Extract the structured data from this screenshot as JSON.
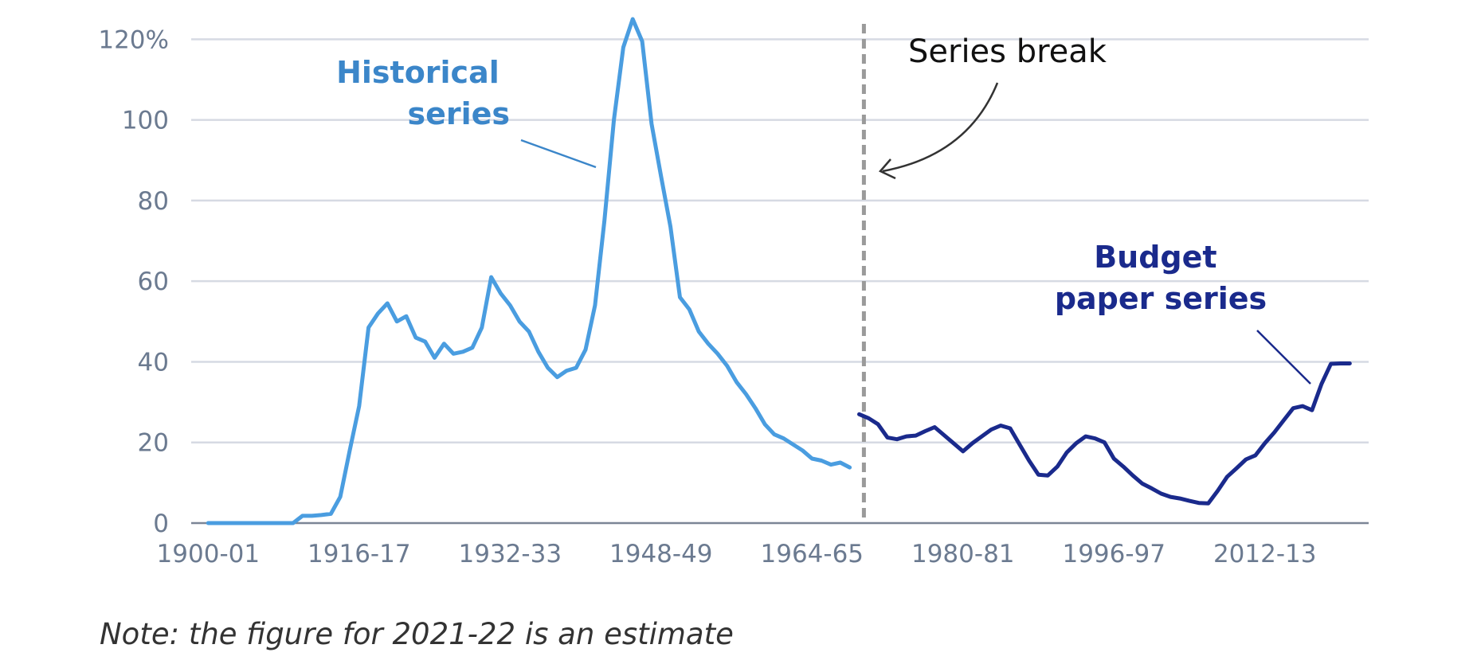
{
  "chart_data": {
    "type": "line",
    "ylim": [
      0,
      125
    ],
    "y_ticks": [
      0,
      20,
      40,
      60,
      80,
      100,
      120
    ],
    "y_tick_labels": [
      "0",
      "20",
      "40",
      "60",
      "80",
      "100",
      "120%"
    ],
    "x_tick_labels": [
      "1900-01",
      "1916-17",
      "1932-33",
      "1948-49",
      "1964-65",
      "1980-81",
      "1996-97",
      "2012-13"
    ],
    "x_tick_years": [
      1900,
      1916,
      1932,
      1948,
      1964,
      1980,
      1996,
      2012
    ],
    "x_range": [
      1898.2,
      2023.0
    ],
    "series_break_year": 1969.5,
    "grid": true,
    "series": [
      {
        "name": "Historical series",
        "color": "#4a9de0",
        "x": [
          1900,
          1901,
          1902,
          1903,
          1904,
          1905,
          1906,
          1907,
          1908,
          1909,
          1910,
          1911,
          1912,
          1913,
          1914,
          1915,
          1916,
          1917,
          1918,
          1919,
          1920,
          1921,
          1922,
          1923,
          1924,
          1925,
          1926,
          1927,
          1928,
          1929,
          1930,
          1931,
          1932,
          1933,
          1934,
          1935,
          1936,
          1937,
          1938,
          1939,
          1940,
          1941,
          1942,
          1943,
          1944,
          1945,
          1946,
          1947,
          1948,
          1949,
          1950,
          1951,
          1952,
          1953,
          1954,
          1955,
          1956,
          1957,
          1958,
          1959,
          1960,
          1961,
          1962,
          1963,
          1964,
          1965,
          1966,
          1967,
          1968
        ],
        "values": [
          0,
          0,
          0,
          0,
          0,
          0,
          0,
          0,
          0,
          0,
          1.8,
          1.8,
          2,
          2.3,
          6.5,
          18,
          29,
          48.5,
          52,
          54.5,
          50,
          51.3,
          46,
          45,
          41,
          44.5,
          42,
          42.5,
          43.5,
          48.5,
          61,
          57,
          54,
          50,
          47.5,
          42.5,
          38.5,
          36.2,
          37.8,
          38.5,
          43,
          54,
          75,
          100,
          118,
          125,
          119.5,
          99,
          86,
          73.5,
          56,
          53,
          47.5,
          44.5,
          42,
          39,
          35,
          32,
          28.5,
          24.5,
          22,
          21,
          19.5,
          18,
          16,
          15.5,
          14.5,
          15,
          13.8
        ]
      },
      {
        "name": "Budget paper series",
        "color": "#1a2a8c",
        "x": [
          1969,
          1970,
          1971,
          1972,
          1973,
          1974,
          1975,
          1976,
          1977,
          1978,
          1979,
          1980,
          1981,
          1982,
          1983,
          1984,
          1985,
          1986,
          1987,
          1988,
          1989,
          1990,
          1991,
          1992,
          1993,
          1994,
          1995,
          1996,
          1997,
          1998,
          1999,
          2000,
          2001,
          2002,
          2003,
          2004,
          2005,
          2006,
          2007,
          2008,
          2009,
          2010,
          2011,
          2012,
          2013,
          2014,
          2015,
          2016,
          2017,
          2018,
          2019,
          2020,
          2021
        ],
        "values": [
          27,
          26,
          24.5,
          21.2,
          20.8,
          21.5,
          21.7,
          22.8,
          23.8,
          21.8,
          19.8,
          17.8,
          19.8,
          21.5,
          23.2,
          24.2,
          23.5,
          19.5,
          15.5,
          12,
          11.8,
          14,
          17.5,
          19.8,
          21.5,
          21,
          20,
          16,
          14,
          11.8,
          9.8,
          8.6,
          7.3,
          6.5,
          6.1,
          5.5,
          5,
          4.9,
          8,
          11.5,
          13.6,
          15.8,
          16.8,
          19.8,
          22.5,
          25.5,
          28.5,
          29,
          28,
          34.5,
          39.5,
          39.6,
          39.6
        ]
      }
    ],
    "annotations": {
      "historical_label": [
        "Historical",
        "series"
      ],
      "budget_label": [
        "Budget",
        "paper series"
      ],
      "break_label": "Series break"
    },
    "note": "Note: the figure for 2021-22 is an estimate"
  }
}
